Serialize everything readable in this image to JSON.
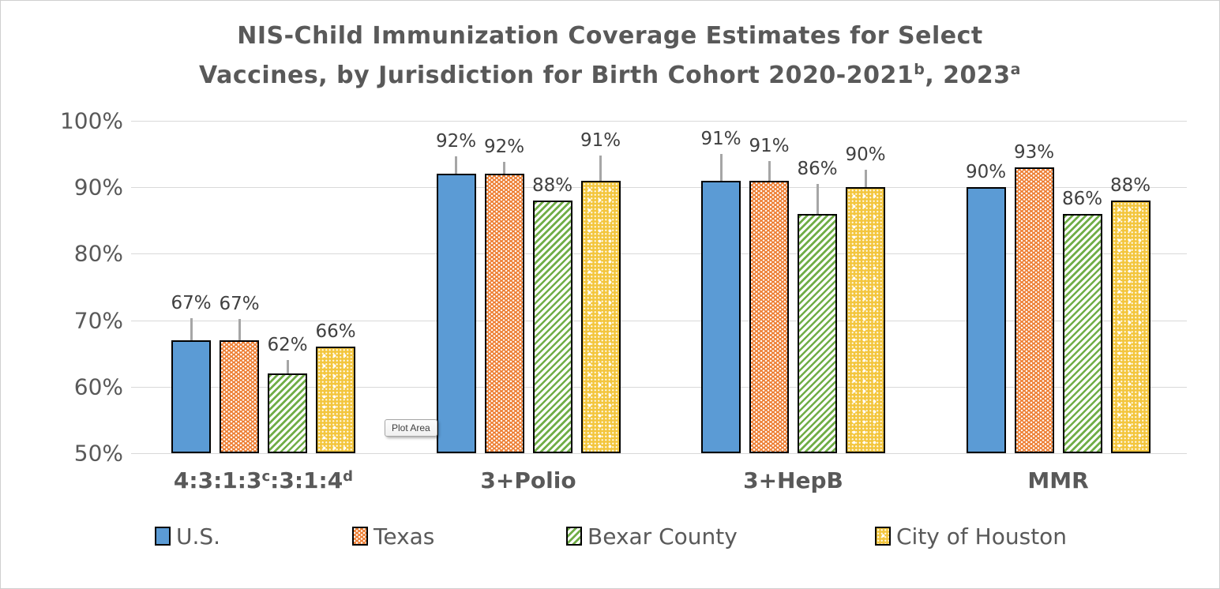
{
  "title": {
    "line1": "NIS-Child Immunization Coverage Estimates for Select",
    "line2_segments": [
      {
        "t": "Vaccines, by Jurisdiction for Birth Cohort 2020-2021",
        "sup": false
      },
      {
        "t": "b",
        "sup": true
      },
      {
        "t": ", 2023",
        "sup": false
      },
      {
        "t": "a",
        "sup": true
      }
    ]
  },
  "plot_area_tooltip": "Plot Area",
  "chart_data": {
    "type": "bar",
    "title": "NIS-Child Immunization Coverage Estimates for Select Vaccines, by Jurisdiction for Birth Cohort 2020-2021(b), 2023(a)",
    "xlabel": "",
    "ylabel": "",
    "ylim": [
      50,
      100
    ],
    "grid": true,
    "legend_position": "bottom",
    "yticks": [
      {
        "value": 100,
        "label": "100%"
      },
      {
        "value": 90,
        "label": "90%"
      },
      {
        "value": 80,
        "label": "80%"
      },
      {
        "value": 70,
        "label": "70%"
      },
      {
        "value": 60,
        "label": "60%"
      },
      {
        "value": 50,
        "label": "50%"
      }
    ],
    "categories": [
      {
        "segments": [
          {
            "t": "4:3:1:3",
            "sup": false
          },
          {
            "t": "c",
            "sup": true
          },
          {
            "t": ":3:1:4",
            "sup": false
          },
          {
            "t": "d",
            "sup": true
          }
        ]
      },
      {
        "segments": [
          {
            "t": "3+Polio",
            "sup": false
          }
        ]
      },
      {
        "segments": [
          {
            "t": "3+HepB",
            "sup": false
          }
        ]
      },
      {
        "segments": [
          {
            "t": "MMR",
            "sup": false
          }
        ]
      }
    ],
    "series": [
      {
        "key": "us",
        "name": "U.S.",
        "color": "#5B9BD5",
        "pattern": "solid",
        "values": [
          67,
          92,
          91,
          90
        ],
        "labels": [
          "67%",
          "92%",
          "91%",
          "90%"
        ],
        "ci_upper": [
          3.3,
          2.6,
          4.0,
          0
        ]
      },
      {
        "key": "texas",
        "name": "Texas",
        "color": "#ED7D31",
        "pattern": "white-dots-on-orange",
        "values": [
          67,
          92,
          91,
          93
        ],
        "labels": [
          "67%",
          "92%",
          "91%",
          "93%"
        ],
        "ci_upper": [
          3.2,
          1.8,
          3.0,
          0
        ]
      },
      {
        "key": "bexar",
        "name": "Bexar County",
        "color": "#70AD47",
        "pattern": "green-diagonal-stripes",
        "values": [
          62,
          88,
          86,
          86
        ],
        "labels": [
          "62%",
          "88%",
          "86%",
          "86%"
        ],
        "ci_upper": [
          2.0,
          0,
          4.5,
          0
        ]
      },
      {
        "key": "houston",
        "name": "City of Houston",
        "color": "#FFC000",
        "pattern": "white-dots-on-gold",
        "values": [
          66,
          91,
          90,
          88
        ],
        "labels": [
          "66%",
          "91%",
          "90%",
          "88%"
        ],
        "ci_upper": [
          0,
          3.8,
          2.6,
          0
        ]
      }
    ]
  }
}
